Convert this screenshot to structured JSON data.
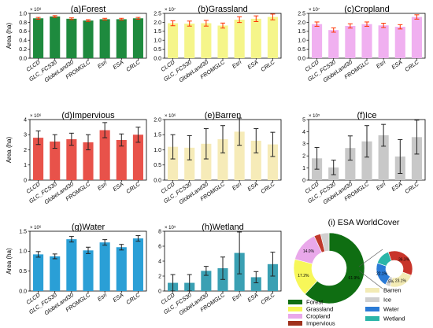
{
  "chart_data": [
    {
      "type": "bar",
      "panel": "forest",
      "title": "(a)Forest",
      "ylabel": "Area (ha)",
      "multiplier": "× 10⁸",
      "categories": [
        "CLCD",
        "GLC_FCS30",
        "GlobeLand30",
        "FROMGLC",
        "Esri",
        "ESA",
        "CRLC"
      ],
      "values": [
        0.89,
        0.93,
        0.88,
        0.84,
        0.87,
        0.87,
        0.89
      ],
      "errors": [
        0.02,
        0.02,
        0.02,
        0.02,
        0.02,
        0.02,
        0.02
      ],
      "ylim": [
        0,
        1
      ],
      "yticks": [
        "0.0",
        "0.2",
        "0.4",
        "0.6",
        "0.8",
        "1.0"
      ],
      "bar_color": "#1e8a3e",
      "error_color": "#ff3300"
    },
    {
      "type": "bar",
      "panel": "grassland",
      "title": "(b)Grassland",
      "ylabel": "",
      "multiplier": "× 10⁷",
      "categories": [
        "CLCD",
        "GLC_FCS30",
        "GlobeLand30",
        "FROMGLC",
        "Esri",
        "ESA",
        "CRLC"
      ],
      "values": [
        1.95,
        1.93,
        1.95,
        1.82,
        2.15,
        2.2,
        2.3
      ],
      "errors": [
        0.14,
        0.14,
        0.16,
        0.14,
        0.16,
        0.16,
        0.16
      ],
      "ylim": [
        0,
        2.5
      ],
      "yticks": [
        "0.0",
        "0.5",
        "1.0",
        "1.5",
        "2.0",
        "2.5"
      ],
      "bar_color": "#f5f58a",
      "error_color": "#ff3300"
    },
    {
      "type": "bar",
      "panel": "cropland",
      "title": "(c)Cropland",
      "ylabel": "",
      "multiplier": "× 10⁷",
      "categories": [
        "CLCD",
        "GLC_FCS30",
        "GlobeLand30",
        "FROMGLC",
        "Esri",
        "ESA",
        "CRLC"
      ],
      "values": [
        1.9,
        1.57,
        1.8,
        1.9,
        1.83,
        1.75,
        2.3
      ],
      "errors": [
        0.12,
        0.12,
        0.12,
        0.12,
        0.12,
        0.12,
        0.12
      ],
      "ylim": [
        0,
        2.5
      ],
      "yticks": [
        "0.0",
        "0.5",
        "1.0",
        "1.5",
        "2.0",
        "2.5"
      ],
      "bar_color": "#f0b0f0",
      "error_color": "#ff3300"
    },
    {
      "type": "bar",
      "panel": "impervious",
      "title": "(d)Impervious",
      "ylabel": "Area (ha)",
      "multiplier": "× 10⁶",
      "categories": [
        "CLCD",
        "GLC_FCS30",
        "GlobeLand30",
        "FROMGLC",
        "Esri",
        "ESA",
        "CRLC"
      ],
      "values": [
        2.8,
        2.55,
        2.7,
        2.5,
        3.3,
        2.65,
        3.0
      ],
      "errors": [
        0.45,
        0.45,
        0.4,
        0.5,
        0.5,
        0.4,
        0.5
      ],
      "ylim": [
        0,
        4
      ],
      "yticks": [
        "0",
        "1",
        "2",
        "3",
        "4"
      ],
      "bar_color": "#e8524a",
      "error_color": "#222222"
    },
    {
      "type": "bar",
      "panel": "barren",
      "title": "(e)Barren",
      "ylabel": "",
      "multiplier": "× 10⁶",
      "categories": [
        "CLCD",
        "GLC_FCS30",
        "GlobeLand30",
        "FROMGLC",
        "Esri",
        "ESA",
        "CRLC"
      ],
      "values": [
        1.1,
        1.07,
        1.2,
        1.35,
        1.6,
        1.3,
        1.18
      ],
      "errors": [
        0.4,
        0.4,
        0.5,
        0.45,
        0.45,
        0.4,
        0.4
      ],
      "ylim": [
        0,
        2.0
      ],
      "yticks": [
        "0.0",
        "0.5",
        "1.0",
        "1.5",
        "2.0"
      ],
      "bar_color": "#f6ebb8",
      "error_color": "#222222"
    },
    {
      "type": "bar",
      "panel": "ice",
      "title": "(f)Ice",
      "ylabel": "",
      "multiplier": "× 10⁵",
      "categories": [
        "CLCD",
        "GLC_FCS30",
        "GlobeLand30",
        "FROMGLC",
        "Esri",
        "ESA",
        "CRLC"
      ],
      "values": [
        1.8,
        1.05,
        2.65,
        3.2,
        3.7,
        1.95,
        3.55
      ],
      "errors": [
        0.9,
        0.6,
        1.0,
        1.3,
        0.9,
        1.4,
        1.4
      ],
      "ylim": [
        0,
        5
      ],
      "yticks": [
        "0",
        "1",
        "2",
        "3",
        "4",
        "5"
      ],
      "bar_color": "#c8c8c8",
      "error_color": "#222222"
    },
    {
      "type": "bar",
      "panel": "water",
      "title": "(g)Water",
      "ylabel": "Area (ha)",
      "multiplier": "× 10⁶",
      "categories": [
        "CLCD",
        "GLC_FCS30",
        "GlobeLand30",
        "FROMGLC",
        "Esri",
        "ESA",
        "CRLC"
      ],
      "values": [
        0.92,
        0.87,
        1.3,
        1.02,
        1.22,
        1.1,
        1.32
      ],
      "errors": [
        0.07,
        0.06,
        0.07,
        0.08,
        0.07,
        0.07,
        0.07
      ],
      "ylim": [
        0,
        1.5
      ],
      "yticks": [
        "0.0",
        "0.5",
        "1.0",
        "1.5"
      ],
      "bar_color": "#2a9fd6",
      "error_color": "#222222"
    },
    {
      "type": "bar",
      "panel": "wetland",
      "title": "(h)Wetland",
      "ylabel": "",
      "multiplier": "× 10⁵",
      "categories": [
        "CLCD",
        "GLC_FCS30",
        "GlobeLand30",
        "FROMGLC",
        "Esri",
        "ESA",
        "CRLC"
      ],
      "values": [
        1.1,
        1.1,
        2.7,
        3.05,
        5.1,
        1.85,
        3.6
      ],
      "errors": [
        1.1,
        1.1,
        0.6,
        1.5,
        2.8,
        0.75,
        1.6
      ],
      "ylim": [
        0,
        8
      ],
      "yticks": [
        "0",
        "2",
        "4",
        "6",
        "8"
      ],
      "bar_color": "#3aa0b3",
      "error_color": "#222222"
    },
    {
      "type": "pie",
      "panel": "esa_worldcover",
      "title": "(i) ESA WorldCover",
      "slices": [
        {
          "label": "Forest",
          "value": 61.9,
          "text": "61.9%",
          "color": "#0f6e12"
        },
        {
          "label": "Grassland",
          "value": 17.2,
          "text": "17.2%",
          "color": "#f7f759"
        },
        {
          "label": "Cropland",
          "value": 14.0,
          "text": "14.0%",
          "color": "#e9a8ea"
        },
        {
          "label": "Impervious",
          "value": 3.0,
          "text": "",
          "color": "#c0392b"
        },
        {
          "label": "Other",
          "value": 3.9,
          "text": "",
          "color": "#d2cfcf"
        }
      ],
      "inset_slices": [
        {
          "label": "Impervious",
          "value": 36.3,
          "text": "36.3%",
          "color": "#c8342a"
        },
        {
          "label": "Barren",
          "value": 23.1,
          "text": "23.1%",
          "color": "#f3ebb5"
        },
        {
          "label": "Ice",
          "value": 4.5,
          "text": "4.5%",
          "color": "#cfcfcf"
        },
        {
          "label": "Water",
          "value": 22.1,
          "text": "22.1%",
          "color": "#2a7ad6"
        },
        {
          "label": "Wetland",
          "value": 14.0,
          "text": "",
          "color": "#2bb5a8"
        }
      ],
      "legend": [
        {
          "label": "Forest",
          "color": "#0f6e12"
        },
        {
          "label": "Grassland",
          "color": "#f7f759"
        },
        {
          "label": "Cropland",
          "color": "#e9a8ea"
        },
        {
          "label": "Impervious",
          "color": "#a0311c"
        },
        {
          "label": "Barren",
          "color": "#f3ebb5"
        },
        {
          "label": "Ice",
          "color": "#cfcfcf"
        },
        {
          "label": "Water",
          "color": "#2a7ad6"
        },
        {
          "label": "Wetland",
          "color": "#2bb5a8"
        }
      ]
    }
  ]
}
